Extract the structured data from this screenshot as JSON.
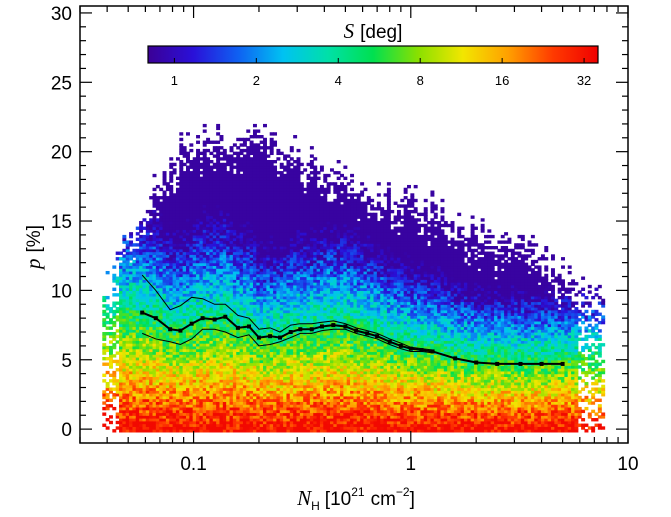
{
  "chart_data": {
    "type": "heatmap",
    "title": "",
    "x_axis": {
      "label_symbol": "N",
      "label_subscript": "H",
      "label_bracket_open": "[10",
      "label_exponent": "21",
      "label_unit": "cm",
      "label_unit_exponent": "−2",
      "label_bracket_close": "]",
      "scale": "log",
      "range": [
        0.03,
        10
      ],
      "tick_labels": [
        "0.1",
        "1",
        "10"
      ],
      "tick_values": [
        0.1,
        1,
        10
      ]
    },
    "y_axis": {
      "label_symbol": "p",
      "label_unit": "[%]",
      "scale": "linear",
      "range": [
        -1,
        30.5
      ],
      "tick_labels": [
        "0",
        "5",
        "10",
        "15",
        "20",
        "25",
        "30"
      ],
      "tick_values": [
        0,
        5,
        10,
        15,
        20,
        25,
        30
      ]
    },
    "colorbar": {
      "symbol": "S",
      "unit": "[deg]",
      "scale": "log",
      "range": [
        0.8,
        36
      ],
      "tick_labels": [
        "1",
        "2",
        "4",
        "8",
        "16",
        "32"
      ],
      "tick_values": [
        1,
        2,
        4,
        8,
        16,
        32
      ],
      "colormap": [
        "#3b0096",
        "#2a10d8",
        "#0f60f2",
        "#00c2f2",
        "#00e0a8",
        "#00e050",
        "#8ae000",
        "#f2e600",
        "#ffa000",
        "#ff3a00",
        "#f00000"
      ]
    },
    "median_curve": {
      "x": [
        0.058,
        0.067,
        0.078,
        0.087,
        0.098,
        0.11,
        0.125,
        0.14,
        0.16,
        0.18,
        0.2,
        0.225,
        0.25,
        0.28,
        0.31,
        0.35,
        0.39,
        0.44,
        0.5,
        0.56,
        0.63,
        0.7,
        0.8,
        0.9,
        1.0,
        1.12,
        1.26,
        1.6,
        2.0,
        2.5,
        3.2,
        4.0,
        5.0
      ],
      "y": [
        8.4,
        8.0,
        7.2,
        7.1,
        7.6,
        8.0,
        7.9,
        8.1,
        7.3,
        7.4,
        6.6,
        6.7,
        6.6,
        7.0,
        7.2,
        7.2,
        7.4,
        7.5,
        7.4,
        7.1,
        6.9,
        6.7,
        6.3,
        6.0,
        5.8,
        5.7,
        5.6,
        5.1,
        4.8,
        4.7,
        4.7,
        4.7,
        4.7
      ]
    },
    "dispersion_upper": {
      "x": [
        0.058,
        0.067,
        0.078,
        0.087,
        0.098,
        0.11,
        0.125,
        0.14,
        0.16,
        0.18,
        0.2,
        0.225,
        0.25,
        0.28,
        0.31,
        0.35,
        0.39,
        0.44,
        0.5,
        0.56,
        0.63,
        0.7,
        0.8,
        0.9,
        1.0,
        1.12,
        1.26
      ],
      "y": [
        11.1,
        10.0,
        8.6,
        8.9,
        9.5,
        9.4,
        9.0,
        9.0,
        8.2,
        8.0,
        7.2,
        7.3,
        7.0,
        7.5,
        7.6,
        7.6,
        7.7,
        7.8,
        7.6,
        7.3,
        7.1,
        6.9,
        6.5,
        6.2,
        5.9,
        5.8,
        5.7
      ]
    },
    "dispersion_lower": {
      "x": [
        0.058,
        0.067,
        0.078,
        0.087,
        0.098,
        0.11,
        0.125,
        0.14,
        0.16,
        0.18,
        0.2,
        0.225,
        0.25,
        0.28,
        0.31,
        0.35,
        0.39,
        0.44,
        0.5,
        0.56,
        0.63,
        0.7,
        0.8,
        0.9,
        1.0,
        1.12,
        1.26
      ],
      "y": [
        6.9,
        6.5,
        6.3,
        6.1,
        6.5,
        7.2,
        7.2,
        7.0,
        6.6,
        6.8,
        6.0,
        6.1,
        6.3,
        6.6,
        6.9,
        6.9,
        7.1,
        7.2,
        7.2,
        6.9,
        6.7,
        6.5,
        6.1,
        5.8,
        5.6,
        5.6,
        5.5
      ]
    },
    "grid": false,
    "legend": "none"
  }
}
